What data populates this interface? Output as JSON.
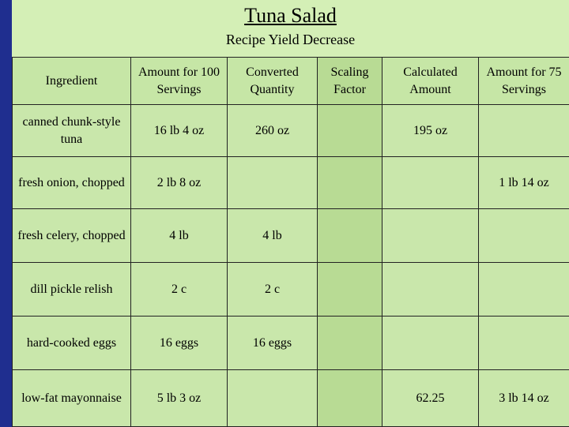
{
  "title": "Tuna Salad",
  "subtitle": "Recipe Yield Decrease",
  "headers": [
    "Ingredient",
    "Amount for 100 Servings",
    "Converted Quantity",
    "Scaling Factor",
    "Calculated Amount",
    "Amount for 75 Servings"
  ],
  "rows": [
    {
      "ingredient": "canned chunk-style tuna",
      "amount100": "16 lb 4 oz",
      "converted": "260 oz",
      "scaling": "",
      "calculated": "195 oz",
      "amount75": ""
    },
    {
      "ingredient": "fresh onion, chopped",
      "amount100": "2 lb 8 oz",
      "converted": "",
      "scaling": "",
      "calculated": "",
      "amount75": "1 lb 14 oz"
    },
    {
      "ingredient": "fresh celery, chopped",
      "amount100": "4 lb",
      "converted": "4 lb",
      "scaling": "",
      "calculated": "",
      "amount75": ""
    },
    {
      "ingredient": "dill pickle relish",
      "amount100": "2 c",
      "converted": "2 c",
      "scaling": "",
      "calculated": "",
      "amount75": ""
    },
    {
      "ingredient": "hard-cooked eggs",
      "amount100": "16 eggs",
      "converted": "16 eggs",
      "scaling": "",
      "calculated": "",
      "amount75": ""
    },
    {
      "ingredient": "low-fat mayonnaise",
      "amount100": "5 lb 3 oz",
      "converted": "",
      "scaling": "",
      "calculated": "62.25",
      "amount75": "3 lb 14 oz"
    }
  ]
}
